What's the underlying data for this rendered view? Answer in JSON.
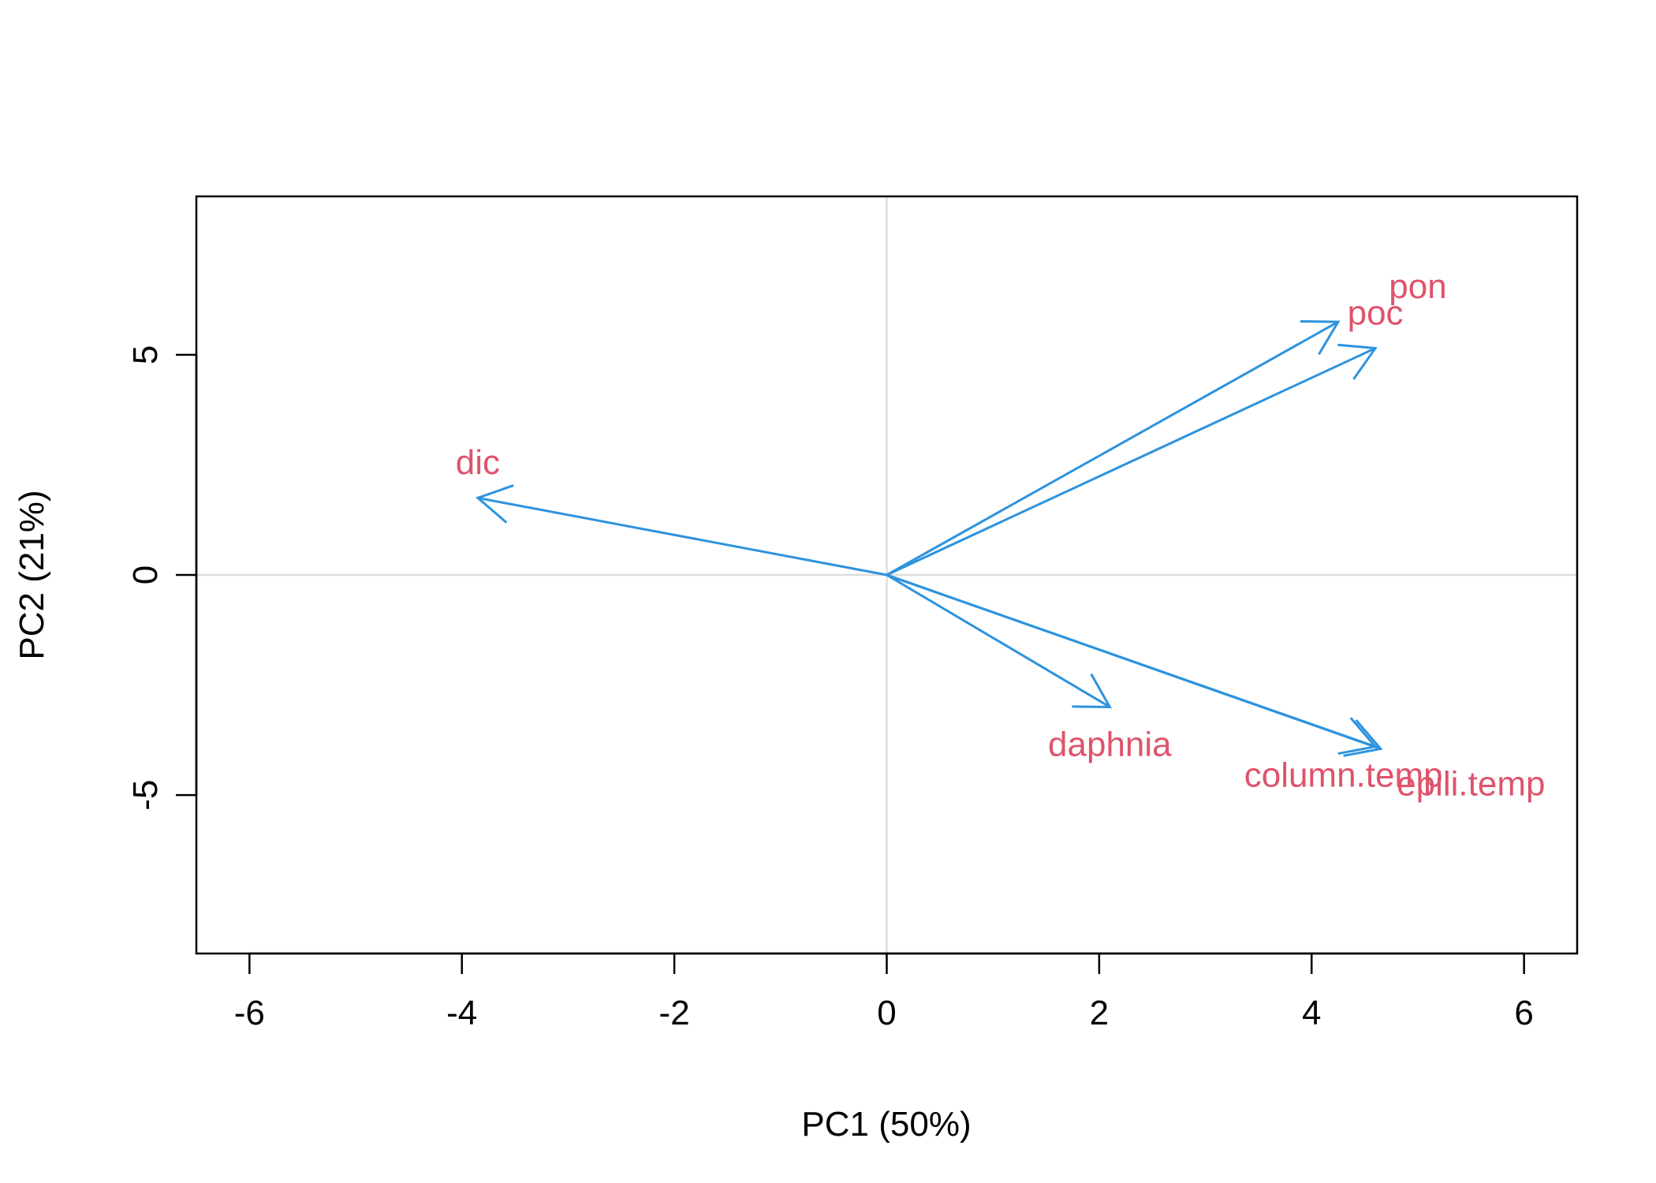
{
  "chart_data": {
    "type": "biplot",
    "title": "",
    "xlabel": "PC1 (50%)",
    "ylabel": "PC2 (21%)",
    "xlim": [
      -6.5,
      6.5
    ],
    "ylim": [
      -8.6,
      8.6
    ],
    "x_ticks": [
      -6,
      -4,
      -2,
      0,
      2,
      4,
      6
    ],
    "y_ticks": [
      -5,
      0,
      5
    ],
    "grid": false,
    "reference_lines": {
      "x": 0,
      "y": 0,
      "color": "#dddddd"
    },
    "arrow_color": "#2d93de",
    "label_color": "#df536b",
    "variables": [
      {
        "name": "dic",
        "x": -3.85,
        "y": 1.75,
        "label_x": -3.85,
        "label_y": 2.5
      },
      {
        "name": "poc",
        "x": 4.25,
        "y": 5.75,
        "label_x": 4.6,
        "label_y": 5.9
      },
      {
        "name": "pon",
        "x": 4.6,
        "y": 5.15,
        "label_x": 5.0,
        "label_y": 6.5
      },
      {
        "name": "daphnia",
        "x": 2.1,
        "y": -3.0,
        "label_x": 2.1,
        "label_y": -3.9
      },
      {
        "name": "column.temp",
        "x": 4.6,
        "y": -3.9,
        "label_x": 4.3,
        "label_y": -4.6
      },
      {
        "name": "epili.temp",
        "x": 4.65,
        "y": -3.95,
        "label_x": 5.5,
        "label_y": -4.8
      }
    ]
  }
}
